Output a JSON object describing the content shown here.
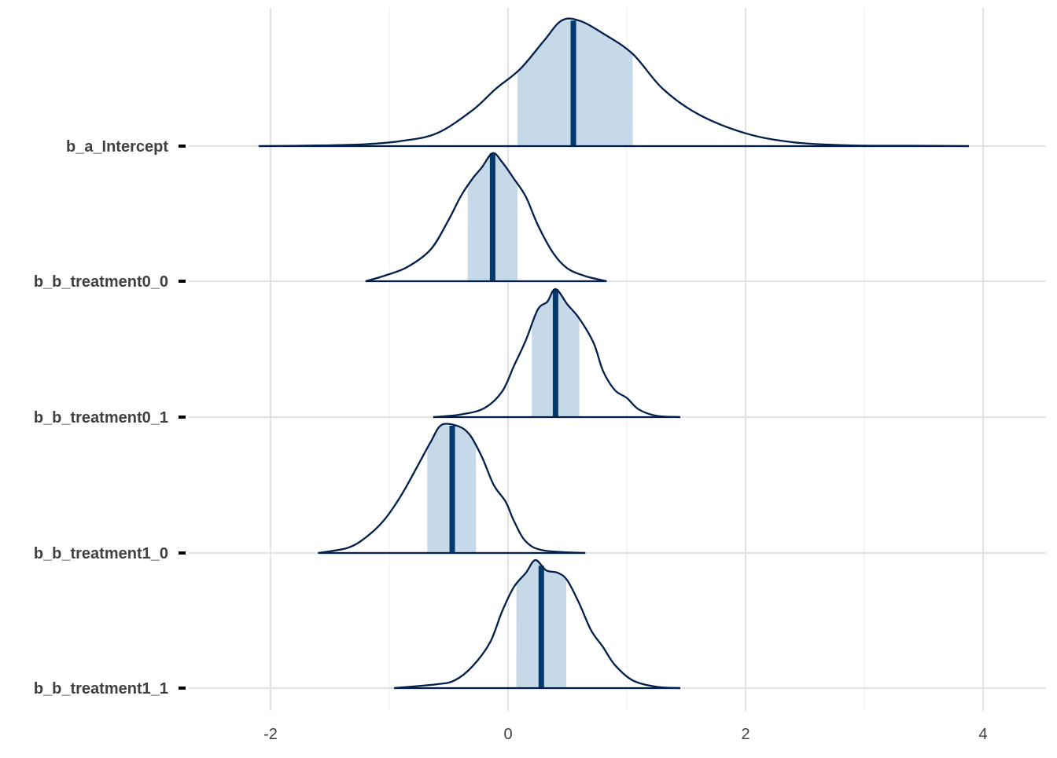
{
  "chart_data": {
    "type": "area",
    "subtype": "posterior-density-ridges",
    "title": "",
    "xlabel": "",
    "ylabel": "",
    "xlim": [
      -2.65,
      4.45
    ],
    "x_ticks": [
      -2,
      0,
      2,
      4
    ],
    "x_tick_labels": [
      "-2",
      "0",
      "2",
      "4"
    ],
    "grid": true,
    "legend": "none",
    "colors": {
      "outline": "#011f4b",
      "interval_fill": "#c6d9e8",
      "median_line": "#03396c",
      "grid_major": "#e3e3e3",
      "grid_minor": "#efefef",
      "text": "#404040",
      "tick_mark": "#000000"
    },
    "parameters": [
      {
        "name": "b_a_Intercept",
        "median": 0.55,
        "interval": [
          0.08,
          1.05
        ],
        "density": [
          [
            -2.1,
            0
          ],
          [
            -1.6,
            0.005
          ],
          [
            -1.2,
            0.015
          ],
          [
            -0.9,
            0.04
          ],
          [
            -0.6,
            0.1
          ],
          [
            -0.3,
            0.28
          ],
          [
            -0.1,
            0.45
          ],
          [
            0.1,
            0.6
          ],
          [
            0.3,
            0.82
          ],
          [
            0.45,
            0.98
          ],
          [
            0.6,
            0.98
          ],
          [
            0.8,
            0.88
          ],
          [
            1.05,
            0.72
          ],
          [
            1.3,
            0.45
          ],
          [
            1.6,
            0.25
          ],
          [
            2.0,
            0.1
          ],
          [
            2.4,
            0.03
          ],
          [
            2.9,
            0.005
          ],
          [
            3.4,
            0.003
          ],
          [
            3.88,
            0
          ]
        ]
      },
      {
        "name": "b_b_treatment0_0",
        "median": -0.13,
        "interval": [
          -0.34,
          0.08
        ],
        "density": [
          [
            -1.2,
            0
          ],
          [
            -1.05,
            0.04
          ],
          [
            -0.85,
            0.11
          ],
          [
            -0.65,
            0.25
          ],
          [
            -0.5,
            0.48
          ],
          [
            -0.4,
            0.66
          ],
          [
            -0.3,
            0.8
          ],
          [
            -0.22,
            0.89
          ],
          [
            -0.13,
            1.0
          ],
          [
            -0.05,
            0.93
          ],
          [
            0.05,
            0.8
          ],
          [
            0.15,
            0.66
          ],
          [
            0.25,
            0.44
          ],
          [
            0.38,
            0.22
          ],
          [
            0.5,
            0.1
          ],
          [
            0.65,
            0.04
          ],
          [
            0.83,
            0
          ]
        ]
      },
      {
        "name": "b_b_treatment0_1",
        "median": 0.4,
        "interval": [
          0.2,
          0.6
        ],
        "density": [
          [
            -0.63,
            0
          ],
          [
            -0.4,
            0.02
          ],
          [
            -0.2,
            0.07
          ],
          [
            -0.05,
            0.2
          ],
          [
            0.05,
            0.4
          ],
          [
            0.15,
            0.6
          ],
          [
            0.25,
            0.84
          ],
          [
            0.33,
            0.9
          ],
          [
            0.4,
            1.0
          ],
          [
            0.5,
            0.88
          ],
          [
            0.6,
            0.77
          ],
          [
            0.72,
            0.58
          ],
          [
            0.8,
            0.36
          ],
          [
            0.9,
            0.21
          ],
          [
            1.0,
            0.15
          ],
          [
            1.1,
            0.06
          ],
          [
            1.25,
            0.01
          ],
          [
            1.45,
            0
          ]
        ]
      },
      {
        "name": "b_b_treatment1_0",
        "median": -0.47,
        "interval": [
          -0.68,
          -0.27
        ],
        "density": [
          [
            -1.6,
            0
          ],
          [
            -1.35,
            0.04
          ],
          [
            -1.2,
            0.12
          ],
          [
            -1.05,
            0.25
          ],
          [
            -0.9,
            0.45
          ],
          [
            -0.75,
            0.7
          ],
          [
            -0.65,
            0.87
          ],
          [
            -0.56,
            1.0
          ],
          [
            -0.42,
            0.99
          ],
          [
            -0.32,
            0.92
          ],
          [
            -0.22,
            0.75
          ],
          [
            -0.12,
            0.53
          ],
          [
            -0.02,
            0.4
          ],
          [
            0.05,
            0.25
          ],
          [
            0.15,
            0.09
          ],
          [
            0.3,
            0.02
          ],
          [
            0.65,
            0
          ]
        ]
      },
      {
        "name": "b_b_treatment1_1",
        "median": 0.28,
        "interval": [
          0.07,
          0.49
        ],
        "density": [
          [
            -0.96,
            0
          ],
          [
            -0.6,
            0.03
          ],
          [
            -0.45,
            0.06
          ],
          [
            -0.3,
            0.17
          ],
          [
            -0.15,
            0.36
          ],
          [
            -0.05,
            0.6
          ],
          [
            0.05,
            0.79
          ],
          [
            0.15,
            0.9
          ],
          [
            0.23,
            1.0
          ],
          [
            0.32,
            0.92
          ],
          [
            0.42,
            0.9
          ],
          [
            0.5,
            0.84
          ],
          [
            0.6,
            0.66
          ],
          [
            0.7,
            0.45
          ],
          [
            0.8,
            0.32
          ],
          [
            0.9,
            0.18
          ],
          [
            1.05,
            0.06
          ],
          [
            1.25,
            0.01
          ],
          [
            1.45,
            0
          ]
        ]
      }
    ]
  }
}
